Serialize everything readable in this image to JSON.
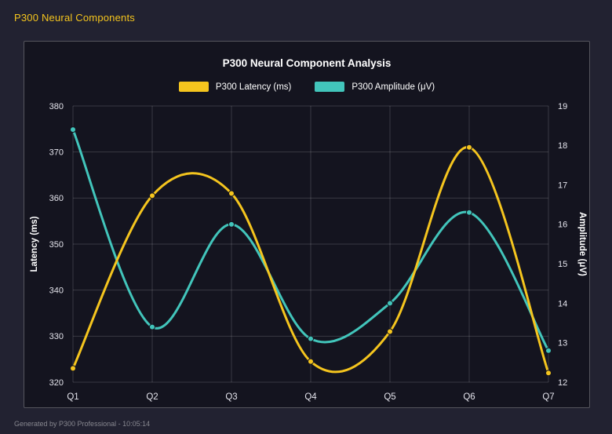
{
  "page": {
    "title": "P300 Neural Components",
    "footer": "Generated by P300 Professional - 10:05:14"
  },
  "chart_data": {
    "type": "line",
    "title": "P300 Neural Component Analysis",
    "categories": [
      "Q1",
      "Q2",
      "Q3",
      "Q4",
      "Q5",
      "Q6",
      "Q7"
    ],
    "series": [
      {
        "name": "P300 Latency (ms)",
        "axis": "left",
        "color": "#f5c51e",
        "values": [
          323,
          360.5,
          361,
          324.5,
          331,
          371,
          322
        ]
      },
      {
        "name": "P300 Amplitude (μV)",
        "axis": "right",
        "color": "#42c5bb",
        "values": [
          18.4,
          13.4,
          16.0,
          13.1,
          14.0,
          16.3,
          12.8
        ]
      }
    ],
    "left_axis": {
      "label": "Latency (ms)",
      "min": 320,
      "max": 380,
      "step": 10
    },
    "right_axis": {
      "label": "Amplitude (μV)",
      "min": 12,
      "max": 19,
      "step": 1
    },
    "grid": true,
    "legend_position": "top",
    "line_style": "smooth"
  }
}
